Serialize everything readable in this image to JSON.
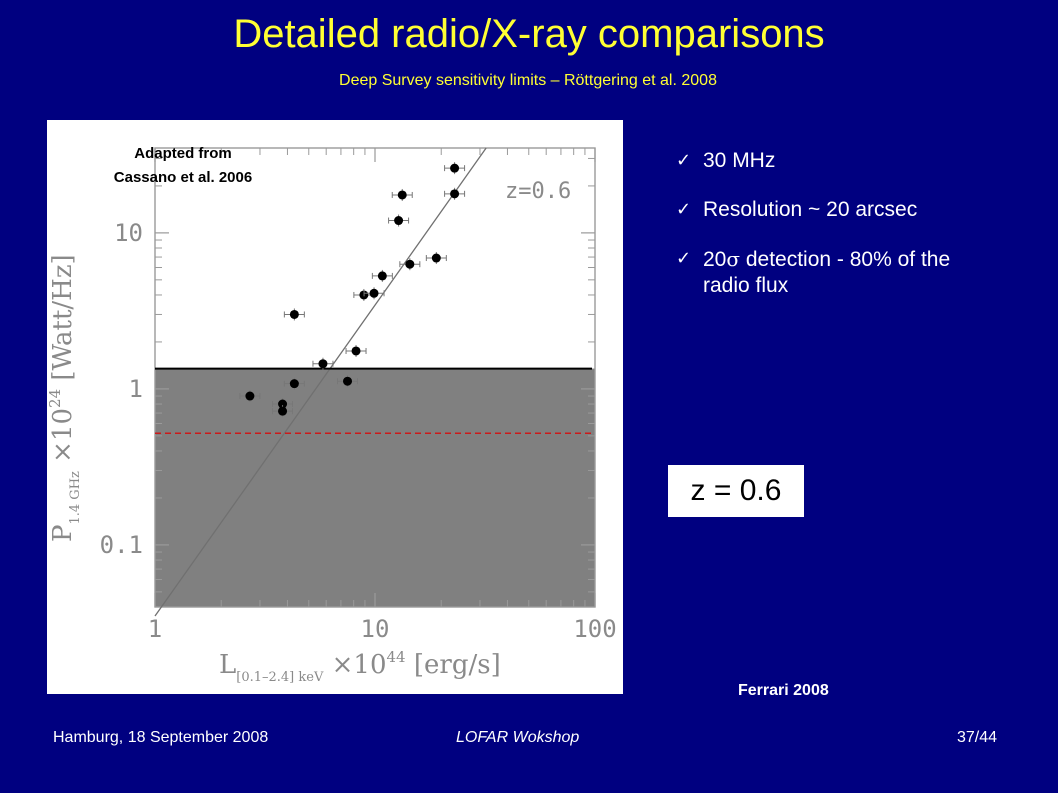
{
  "slide": {
    "title": "Detailed radio/X-ray comparisons",
    "subtitle": "Deep Survey sensitivity limits – Röttgering et al. 2008",
    "adapted_line1": "Adapted from",
    "adapted_line2": "Cassano et al. 2006",
    "bullets": [
      {
        "text": "30 MHz"
      },
      {
        "text": "Resolution ~ 20 arcsec"
      },
      {
        "prefix": "20",
        "symbol": "σ",
        "text": " detection - 80% of the radio flux"
      }
    ],
    "z_box": "z = 0.6",
    "credit": "Ferrari 2008",
    "footer_left": "Hamburg, 18 September 2008",
    "footer_mid": "LOFAR Wokshop",
    "footer_right": "37/44"
  },
  "chart_data": {
    "type": "scatter",
    "scale": "log-log",
    "annotation": "z=0.6",
    "xlabel": {
      "main": "L",
      "sub": "[0.1–2.4] keV",
      "rest": " ×10",
      "sup": "44",
      "unit": " [erg/s]"
    },
    "ylabel": {
      "main": "P",
      "sub": "1.4 GHz",
      "rest": " ×10",
      "sup": "24",
      "unit": " [Watt/Hz]"
    },
    "xlim": [
      1,
      100
    ],
    "ylim": [
      0.04,
      35
    ],
    "xticks": [
      {
        "value": 1,
        "label": "1"
      },
      {
        "value": 10,
        "label": "10"
      },
      {
        "value": 100,
        "label": "100"
      }
    ],
    "yticks": [
      {
        "value": 0.1,
        "label": "0.1"
      },
      {
        "value": 1,
        "label": "1"
      },
      {
        "value": 10,
        "label": "10"
      }
    ],
    "detection_limit": 1.35,
    "sigma_limit": 0.52,
    "fit_line": [
      [
        1,
        0.035
      ],
      [
        32,
        35
      ]
    ],
    "points": [
      {
        "x": 2.7,
        "y": 0.9
      },
      {
        "x": 3.8,
        "y": 0.8
      },
      {
        "x": 3.8,
        "y": 0.72
      },
      {
        "x": 4.3,
        "y": 1.08
      },
      {
        "x": 4.3,
        "y": 3.0
      },
      {
        "x": 5.8,
        "y": 1.45
      },
      {
        "x": 7.5,
        "y": 1.12
      },
      {
        "x": 8.2,
        "y": 1.75
      },
      {
        "x": 8.9,
        "y": 4.0
      },
      {
        "x": 9.9,
        "y": 4.1
      },
      {
        "x": 10.8,
        "y": 5.3
      },
      {
        "x": 12.8,
        "y": 12.0
      },
      {
        "x": 13.3,
        "y": 17.5
      },
      {
        "x": 14.4,
        "y": 6.3
      },
      {
        "x": 19.0,
        "y": 6.9
      },
      {
        "x": 23.0,
        "y": 26.0
      },
      {
        "x": 23.0,
        "y": 17.8
      }
    ]
  }
}
